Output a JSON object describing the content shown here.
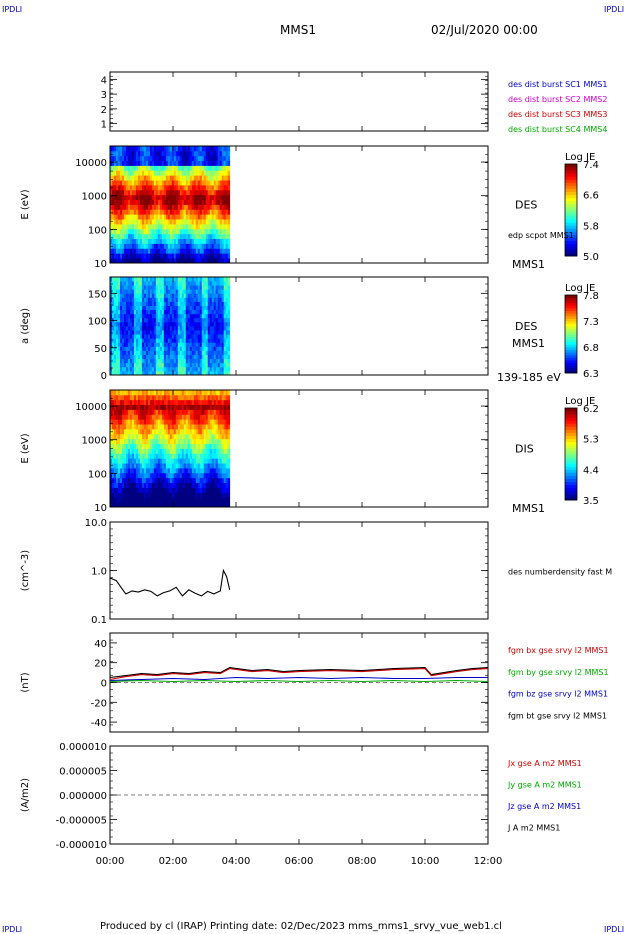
{
  "header": {
    "corner_left": "IPDLI",
    "corner_right": "IPDLI",
    "title": "MMS1",
    "date": "02/Jul/2020 00:00",
    "footer": "Produced by cl (IRAP)   Printing date: 02/Dec/2023   mms_mms1_srvy_vue_web1.cl",
    "footer_corner_left": "IPDLI",
    "footer_corner_right": "IPDLI"
  },
  "x_axis": {
    "ticks": [
      "00:00",
      "02:00",
      "04:00",
      "06:00",
      "08:00",
      "10:00",
      "12:00"
    ],
    "range_hours": [
      0,
      12
    ]
  },
  "chart_data": [
    {
      "type": "line",
      "panel": "mission-phase",
      "xlabel": "",
      "ylabel": "",
      "yticks": [
        "4",
        "3",
        "2",
        "1"
      ],
      "ylim": [
        0.5,
        4.5
      ],
      "legend": [
        {
          "text": "des dist burst SC1 MMS1",
          "color": "#0000cc"
        },
        {
          "text": "des dist burst SC2 MMS2",
          "color": "#cc00cc"
        },
        {
          "text": "des dist burst SC3 MMS3",
          "color": "#cc0000"
        },
        {
          "text": "des dist burst SC4 MMS4",
          "color": "#00aa00"
        }
      ]
    },
    {
      "type": "heatmap",
      "panel": "electron-energy",
      "ylabel": "E (eV)",
      "yscale": "log",
      "ylim": [
        10,
        30000
      ],
      "yticks": [
        "10000",
        "1000",
        "100",
        "10"
      ],
      "data_end_hour": 3.8,
      "label": "DES",
      "label2": "edp scpot MMS1",
      "label3": "MMS1",
      "colorbar": {
        "title": "Log JE",
        "ticks": [
          "7.4",
          "6.6",
          "5.8",
          "5.0"
        ],
        "range": [
          5.0,
          7.4
        ]
      }
    },
    {
      "type": "heatmap",
      "panel": "electron-pitch-angle",
      "ylabel": "a (deg)",
      "ylim": [
        0,
        180
      ],
      "yticks": [
        "150",
        "100",
        "50",
        "0"
      ],
      "data_end_hour": 3.8,
      "label": "DES",
      "label2": "MMS1",
      "label3": "139-185 eV",
      "colorbar": {
        "title": "Log JE",
        "ticks": [
          "7.8",
          "7.3",
          "6.8",
          "6.3"
        ],
        "range": [
          6.3,
          7.8
        ]
      }
    },
    {
      "type": "heatmap",
      "panel": "ion-energy",
      "ylabel": "E (eV)",
      "yscale": "log",
      "ylim": [
        10,
        30000
      ],
      "yticks": [
        "10000",
        "1000",
        "100",
        "10"
      ],
      "data_end_hour": 3.8,
      "label": "DIS",
      "label2": "MMS1",
      "colorbar": {
        "title": "Log JE",
        "ticks": [
          "6.2",
          "5.3",
          "4.4",
          "3.5"
        ],
        "range": [
          3.5,
          6.2
        ]
      }
    },
    {
      "type": "line",
      "panel": "density",
      "ylabel": "(cm^-3)",
      "yscale": "log",
      "ylim": [
        0.1,
        10
      ],
      "yticks": [
        "10.0",
        "1.0",
        "0.1"
      ],
      "legend": [
        {
          "text": "des numberdensity fast M",
          "color": "#000000"
        }
      ],
      "series": [
        {
          "name": "des numberdensity fast M",
          "color": "#000000",
          "x": [
            0.0,
            0.2,
            0.35,
            0.5,
            0.7,
            0.9,
            1.1,
            1.3,
            1.5,
            1.7,
            1.9,
            2.1,
            2.3,
            2.5,
            2.7,
            2.9,
            3.1,
            3.3,
            3.5,
            3.6,
            3.7,
            3.8
          ],
          "y": [
            0.7,
            0.62,
            0.45,
            0.33,
            0.38,
            0.36,
            0.4,
            0.37,
            0.3,
            0.35,
            0.38,
            0.45,
            0.3,
            0.4,
            0.34,
            0.3,
            0.37,
            0.33,
            0.38,
            1.0,
            0.75,
            0.4
          ]
        }
      ]
    },
    {
      "type": "line",
      "panel": "magnetic-field",
      "ylabel": "(nT)",
      "ylim": [
        -50,
        50
      ],
      "yticks": [
        "40",
        "20",
        "0",
        "-20",
        "-40"
      ],
      "legend": [
        {
          "text": "fgm bx gse srvy l2 MMS1",
          "color": "#cc0000"
        },
        {
          "text": "fgm by gse srvy l2 MMS1",
          "color": "#00aa00"
        },
        {
          "text": "fgm bz gse srvy l2 MMS1",
          "color": "#0000cc"
        },
        {
          "text": "fgm bt gse srvy l2 MMS1",
          "color": "#000000"
        }
      ],
      "series": [
        {
          "name": "fgm bt gse srvy l2 MMS1",
          "color": "#000000",
          "x": [
            0,
            0.5,
            1,
            1.5,
            2,
            2.5,
            3,
            3.5,
            3.8,
            4.5,
            5,
            5.5,
            6,
            7,
            8,
            9,
            10,
            10.2,
            11,
            11.5,
            12
          ],
          "y": [
            5,
            7,
            9,
            8,
            10,
            9,
            11,
            10,
            15,
            12,
            13,
            11,
            12,
            13,
            12,
            14,
            15,
            8,
            12,
            14,
            15
          ]
        },
        {
          "name": "fgm bx gse srvy l2 MMS1",
          "color": "#cc0000",
          "x": [
            0,
            0.5,
            1,
            1.5,
            2,
            2.5,
            3,
            3.5,
            3.8,
            4.5,
            5,
            5.5,
            6,
            7,
            8,
            9,
            10,
            10.2,
            11,
            11.5,
            12
          ],
          "y": [
            3,
            6,
            8,
            7,
            9,
            8,
            10,
            9,
            14,
            11,
            12,
            10,
            11,
            12,
            11,
            13,
            14,
            7,
            11,
            13,
            14
          ]
        },
        {
          "name": "fgm bz gse srvy l2 MMS1",
          "color": "#0000cc",
          "x": [
            0,
            1,
            2,
            3,
            4,
            5,
            6,
            7,
            8,
            9,
            10,
            11,
            12
          ],
          "y": [
            2,
            3,
            4,
            3,
            5,
            4,
            5,
            4,
            5,
            4,
            4,
            5,
            5
          ]
        },
        {
          "name": "fgm by gse srvy l2 MMS1",
          "color": "#00aa00",
          "x": [
            0,
            1,
            2,
            3,
            4,
            5,
            6,
            7,
            8,
            9,
            10,
            11,
            12
          ],
          "y": [
            1,
            2,
            1,
            2,
            1,
            2,
            1,
            2,
            1,
            2,
            1,
            2,
            1
          ]
        }
      ]
    },
    {
      "type": "line",
      "panel": "current-density",
      "ylabel": "(A/m2)",
      "ylim": [
        -1e-05,
        1e-05
      ],
      "yticks": [
        "0.000010",
        "0.000005",
        "0.000000",
        "-0.000005",
        "-0.000010"
      ],
      "legend": [
        {
          "text": "Jx gse A m2 MMS1",
          "color": "#cc0000"
        },
        {
          "text": "Jy gse A m2 MMS1",
          "color": "#00aa00"
        },
        {
          "text": "Jz gse A m2 MMS1",
          "color": "#0000cc"
        },
        {
          "text": "J A m2 MMS1",
          "color": "#000000"
        }
      ]
    }
  ]
}
